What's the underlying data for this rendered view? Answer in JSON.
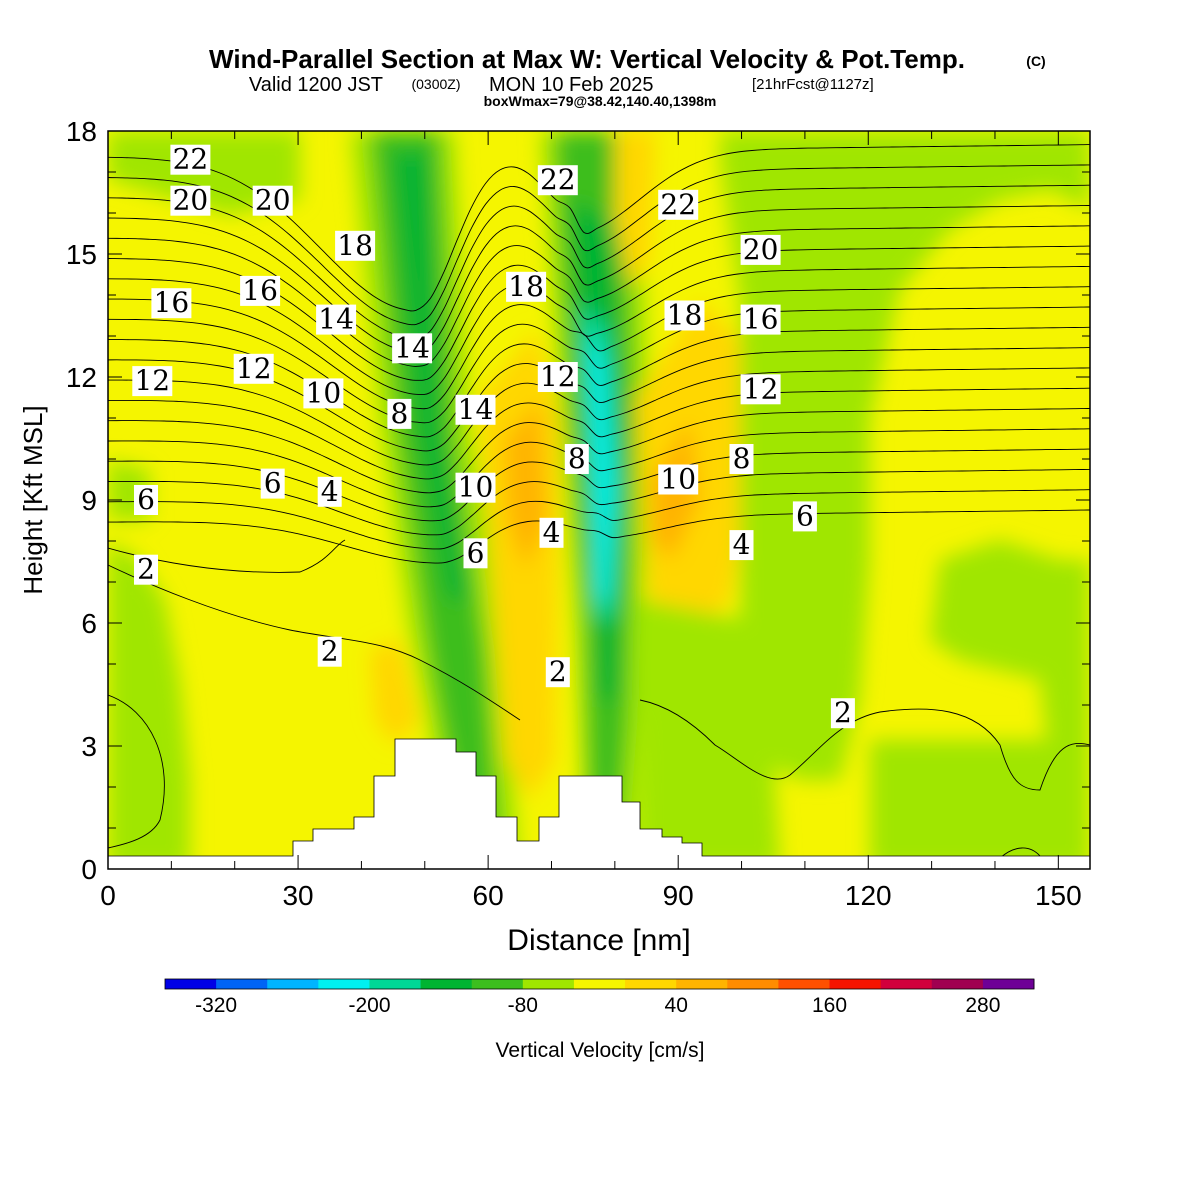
{
  "title": "Wind-Parallel Section at Max W: Vertical Velocity & Pot.Temp.",
  "title_mark": "(C)",
  "subtitle_main": "Valid 1200 JST",
  "subtitle_zulu": "(0300Z)",
  "subtitle_date": "MON 10 Feb 2025",
  "subtitle_fcst": "[21hrFcst@1127z]",
  "subtitle_box": "boxWmax=79@38.42,140.40,1398m",
  "colorbar": {
    "label": "Vertical Velocity [cm/s]",
    "colors": [
      "#0000e6",
      "#0064f5",
      "#00b4ff",
      "#00f0f0",
      "#00d796",
      "#00b432",
      "#3cbe1e",
      "#a0e600",
      "#f5f500",
      "#ffd700",
      "#ffb400",
      "#ff8c00",
      "#ff5000",
      "#f51400",
      "#d2003c",
      "#a00050",
      "#6e0096"
    ],
    "tick_values": [
      -320,
      -200,
      -80,
      40,
      160,
      280
    ],
    "tick_labels": [
      "-320",
      "-200",
      "-80",
      "40",
      "160",
      "280"
    ],
    "min": -360,
    "step": 40
  },
  "chart_data": {
    "type": "heatmap",
    "xlabel": "Distance [nm]",
    "ylabel": "Height [Kft MSL]",
    "xlim": [
      0,
      155
    ],
    "ylim": [
      0,
      18
    ],
    "xticks": [
      0,
      30,
      60,
      90,
      120,
      150
    ],
    "xtick_labels": [
      "0",
      "30",
      "60",
      "90",
      "120",
      "150"
    ],
    "yticks": [
      0,
      3,
      6,
      9,
      12,
      15,
      18
    ],
    "ytick_labels": [
      "0",
      "3",
      "6",
      "9",
      "12",
      "15",
      "18"
    ],
    "filled_field": "Vertical Velocity [cm/s]",
    "contour_field": "Potential temperature [C]",
    "contour_labels": [
      {
        "text": "22",
        "x": 13,
        "y": 17.3
      },
      {
        "text": "20",
        "x": 13,
        "y": 16.3
      },
      {
        "text": "20",
        "x": 26,
        "y": 16.3
      },
      {
        "text": "18",
        "x": 39,
        "y": 15.2
      },
      {
        "text": "16",
        "x": 10,
        "y": 13.8
      },
      {
        "text": "16",
        "x": 24,
        "y": 14.1
      },
      {
        "text": "14",
        "x": 36,
        "y": 13.4
      },
      {
        "text": "14",
        "x": 48,
        "y": 12.7
      },
      {
        "text": "12",
        "x": 7,
        "y": 11.9
      },
      {
        "text": "12",
        "x": 23,
        "y": 12.2
      },
      {
        "text": "10",
        "x": 34,
        "y": 11.6
      },
      {
        "text": "8",
        "x": 46,
        "y": 11.1
      },
      {
        "text": "14",
        "x": 58,
        "y": 11.2
      },
      {
        "text": "6",
        "x": 6,
        "y": 9.0
      },
      {
        "text": "6",
        "x": 26,
        "y": 9.4
      },
      {
        "text": "4",
        "x": 35,
        "y": 9.2
      },
      {
        "text": "10",
        "x": 58,
        "y": 9.3
      },
      {
        "text": "6",
        "x": 58,
        "y": 7.7
      },
      {
        "text": "2",
        "x": 6,
        "y": 7.3
      },
      {
        "text": "2",
        "x": 35,
        "y": 5.3
      },
      {
        "text": "22",
        "x": 71,
        "y": 16.8
      },
      {
        "text": "18",
        "x": 66,
        "y": 14.2
      },
      {
        "text": "12",
        "x": 71,
        "y": 12.0
      },
      {
        "text": "8",
        "x": 74,
        "y": 10.0
      },
      {
        "text": "4",
        "x": 70,
        "y": 8.2
      },
      {
        "text": "2",
        "x": 71,
        "y": 4.8
      },
      {
        "text": "22",
        "x": 90,
        "y": 16.2
      },
      {
        "text": "20",
        "x": 103,
        "y": 15.1
      },
      {
        "text": "18",
        "x": 91,
        "y": 13.5
      },
      {
        "text": "16",
        "x": 103,
        "y": 13.4
      },
      {
        "text": "12",
        "x": 103,
        "y": 11.7
      },
      {
        "text": "10",
        "x": 90,
        "y": 9.5
      },
      {
        "text": "8",
        "x": 100,
        "y": 10.0
      },
      {
        "text": "6",
        "x": 110,
        "y": 8.6
      },
      {
        "text": "4",
        "x": 100,
        "y": 7.9
      },
      {
        "text": "2",
        "x": 116,
        "y": 3.8
      }
    ]
  }
}
